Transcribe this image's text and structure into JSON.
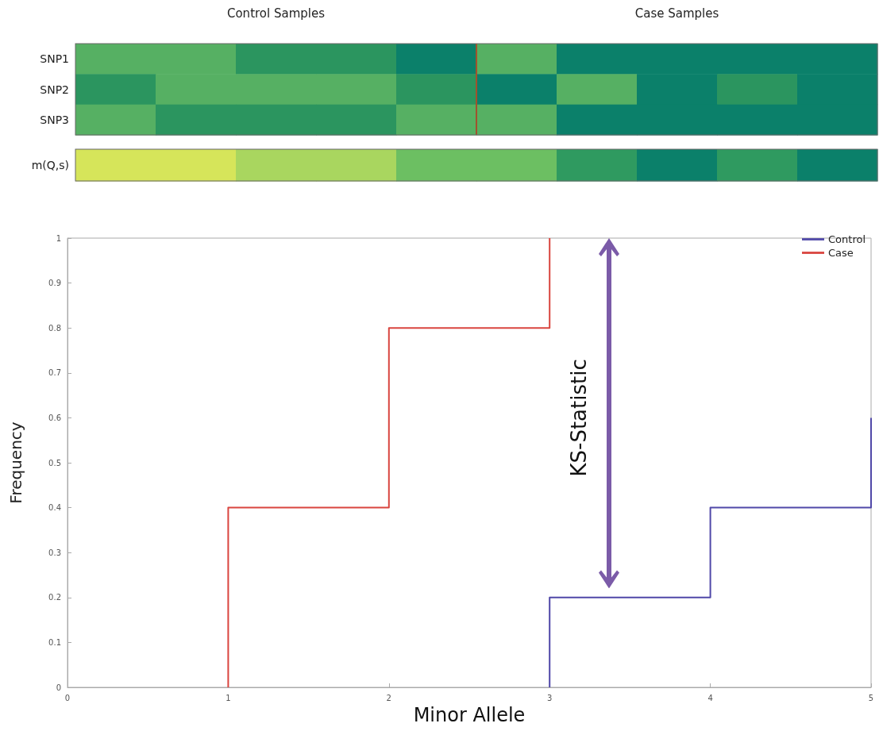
{
  "chart_data": [
    {
      "type": "other",
      "annotations": [
        "Control Samples",
        "Case Samples"
      ],
      "y_categories": [
        "SNP1",
        "SNP2",
        "SNP3"
      ]
    },
    {
      "type": "other",
      "y_categories": [
        "m(Q,s)"
      ]
    },
    {
      "type": "step",
      "xlabel": "Minor Allele",
      "ylabel": "Frequency",
      "annotations": [
        "KS-Statistic"
      ],
      "xlim": [
        0,
        5
      ],
      "xticks": [
        0,
        1,
        2,
        3,
        4,
        5
      ],
      "ylim": [
        0,
        1
      ],
      "yticks": [
        0,
        0.1,
        0.2,
        0.3,
        0.4,
        0.5,
        0.6,
        0.7,
        0.8,
        0.9,
        1
      ],
      "legend": "top right",
      "grid": false,
      "series": [
        {
          "name": "Control",
          "color": "#5048a8",
          "x": [
            3,
            4,
            5,
            5
          ],
          "values": [
            0,
            0.2,
            0.4,
            0.6
          ]
        },
        {
          "name": "Case",
          "color": "#d9453f",
          "x": [
            1,
            2,
            3,
            3
          ],
          "values": [
            0,
            0.4,
            0.8,
            1
          ]
        }
      ]
    }
  ]
}
